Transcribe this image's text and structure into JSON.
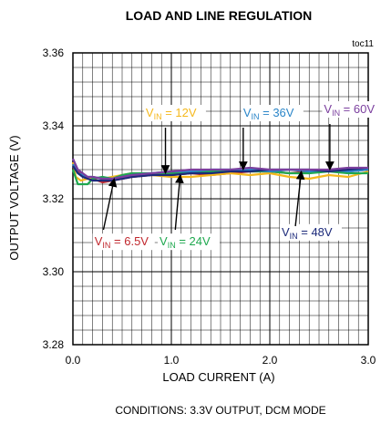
{
  "chart_data": {
    "type": "line",
    "title": "LOAD AND LINE REGULATION",
    "figure_id": "toc11",
    "xlabel": "LOAD CURRENT  (A)",
    "ylabel": "OUTPUT  VOLTAGE  (V)",
    "xlim": [
      0.0,
      3.0
    ],
    "ylim": [
      3.28,
      3.36
    ],
    "xticks": [
      0.0,
      1.0,
      2.0,
      3.0
    ],
    "xtick_labels": [
      "0.0",
      "1.0",
      "2.0",
      "3.0"
    ],
    "yticks": [
      3.28,
      3.3,
      3.32,
      3.34,
      3.36
    ],
    "ytick_labels": [
      "3.28",
      "3.30",
      "3.32",
      "3.34",
      "3.36"
    ],
    "grid": true,
    "footnote": "CONDITIONS: 3.3V OUTPUT, DCM MODE",
    "series": [
      {
        "name": "V_IN = 6.5V",
        "label_main": "V",
        "label_sub": "IN",
        "label_rest": " = 6.5V",
        "color": "#c0272d",
        "x": [
          0.0,
          0.05,
          0.1,
          0.15,
          0.2,
          0.3,
          0.4,
          0.5,
          0.6,
          0.8,
          1.0,
          1.2,
          1.4,
          1.6,
          1.8,
          2.0,
          2.2,
          2.4,
          2.6,
          2.8,
          3.0
        ],
        "y": [
          3.33,
          3.328,
          3.326,
          3.3255,
          3.3255,
          3.3245,
          3.325,
          3.3255,
          3.326,
          3.3265,
          3.3265,
          3.327,
          3.3265,
          3.327,
          3.3275,
          3.3275,
          3.327,
          3.3275,
          3.328,
          3.3275,
          3.328
        ]
      },
      {
        "name": "V_IN = 12V",
        "label_main": "V",
        "label_sub": "IN",
        "label_rest": " = 12V",
        "color": "#f5b81c",
        "x": [
          0.0,
          0.03,
          0.08,
          0.15,
          0.2,
          0.3,
          0.4,
          0.5,
          0.6,
          0.8,
          1.0,
          1.2,
          1.4,
          1.6,
          1.8,
          2.0,
          2.2,
          2.4,
          2.6,
          2.8,
          3.0
        ],
        "y": [
          3.33,
          3.326,
          3.325,
          3.3255,
          3.326,
          3.3255,
          3.326,
          3.3265,
          3.327,
          3.3265,
          3.326,
          3.326,
          3.3265,
          3.327,
          3.3265,
          3.327,
          3.326,
          3.3255,
          3.3265,
          3.326,
          3.3275
        ]
      },
      {
        "name": "V_IN = 24V",
        "label_main": "V",
        "label_sub": "IN",
        "label_rest": " = 24V",
        "color": "#1fa84f",
        "x": [
          0.0,
          0.05,
          0.1,
          0.15,
          0.2,
          0.3,
          0.4,
          0.5,
          0.6,
          0.8,
          1.0,
          1.2,
          1.4,
          1.6,
          1.8,
          2.0,
          2.2,
          2.4,
          2.6,
          2.8,
          3.0
        ],
        "y": [
          3.328,
          3.324,
          3.324,
          3.324,
          3.3255,
          3.326,
          3.3255,
          3.3265,
          3.327,
          3.327,
          3.327,
          3.3275,
          3.3275,
          3.328,
          3.3275,
          3.3275,
          3.327,
          3.327,
          3.3275,
          3.327,
          3.327
        ]
      },
      {
        "name": "V_IN = 36V",
        "label_main": "V",
        "label_sub": "IN",
        "label_rest": " = 36V",
        "color": "#2b86c9",
        "x": [
          0.0,
          0.05,
          0.1,
          0.15,
          0.2,
          0.3,
          0.4,
          0.5,
          0.6,
          0.8,
          1.0,
          1.2,
          1.4,
          1.6,
          1.8,
          2.0,
          2.2,
          2.4,
          2.6,
          2.8,
          3.0
        ],
        "y": [
          3.3295,
          3.327,
          3.3265,
          3.326,
          3.326,
          3.3255,
          3.3255,
          3.326,
          3.3265,
          3.327,
          3.3275,
          3.3275,
          3.328,
          3.328,
          3.328,
          3.3275,
          3.328,
          3.3275,
          3.328,
          3.3275,
          3.328
        ]
      },
      {
        "name": "V_IN = 48V",
        "label_main": "V",
        "label_sub": "IN",
        "label_rest": " = 48V",
        "color": "#1c2a7a",
        "x": [
          0.0,
          0.05,
          0.1,
          0.15,
          0.2,
          0.3,
          0.4,
          0.5,
          0.6,
          0.8,
          1.0,
          1.2,
          1.4,
          1.6,
          1.8,
          2.0,
          2.2,
          2.4,
          2.6,
          2.8,
          3.0
        ],
        "y": [
          3.329,
          3.327,
          3.326,
          3.3255,
          3.325,
          3.325,
          3.325,
          3.3255,
          3.326,
          3.3265,
          3.3265,
          3.327,
          3.327,
          3.3275,
          3.3275,
          3.328,
          3.328,
          3.328,
          3.3275,
          3.328,
          3.3285
        ]
      },
      {
        "name": "V_IN = 60V",
        "label_main": "V",
        "label_sub": "IN",
        "label_rest": " = 60V",
        "color": "#7b3f9e",
        "x": [
          0.0,
          0.05,
          0.1,
          0.15,
          0.2,
          0.3,
          0.4,
          0.5,
          0.6,
          0.8,
          1.0,
          1.2,
          1.4,
          1.6,
          1.8,
          2.0,
          2.2,
          2.4,
          2.6,
          2.8,
          3.0
        ],
        "y": [
          3.331,
          3.328,
          3.327,
          3.326,
          3.326,
          3.3255,
          3.3255,
          3.326,
          3.3265,
          3.327,
          3.3275,
          3.328,
          3.328,
          3.328,
          3.3285,
          3.328,
          3.328,
          3.328,
          3.328,
          3.3285,
          3.3285
        ]
      }
    ],
    "annotations": [
      {
        "series": 1,
        "label_x": 0.74,
        "label_y": 3.3425,
        "arrow_from": [
          0.94,
          3.3395
        ],
        "arrow_to": [
          0.94,
          3.327
        ],
        "text_color": "#f5b81c"
      },
      {
        "series": 3,
        "label_x": 1.73,
        "label_y": 3.3425,
        "arrow_from": [
          1.73,
          3.3395
        ],
        "arrow_to": [
          1.73,
          3.328
        ],
        "text_color": "#2b86c9"
      },
      {
        "series": 5,
        "label_x": 2.55,
        "label_y": 3.3435,
        "arrow_from": [
          2.61,
          3.3405
        ],
        "arrow_to": [
          2.61,
          3.328
        ],
        "text_color": "#7b3f9e"
      },
      {
        "series": 0,
        "label_x": 0.22,
        "label_y": 3.3072,
        "arrow_from": [
          0.31,
          3.3115
        ],
        "arrow_to": [
          0.42,
          3.3255
        ],
        "text_color": "#c0272d"
      },
      {
        "series": 2,
        "label_x": 0.88,
        "label_y": 3.3072,
        "arrow_from": [
          1.04,
          3.3115
        ],
        "arrow_to": [
          1.09,
          3.3265
        ],
        "text_color": "#1fa84f"
      },
      {
        "series": 4,
        "label_x": 2.12,
        "label_y": 3.3098,
        "arrow_from": [
          2.26,
          3.3125
        ],
        "arrow_to": [
          2.32,
          3.3275
        ],
        "text_color": "#1c2a7a"
      }
    ]
  }
}
